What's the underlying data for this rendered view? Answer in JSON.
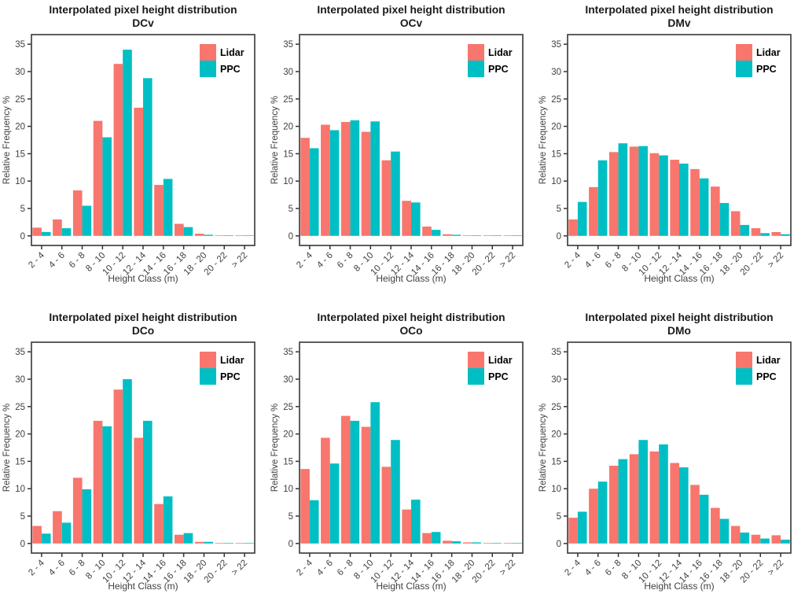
{
  "figure": {
    "background": "#ffffff",
    "layout": "2 rows x 3 columns of grouped bar charts"
  },
  "colors": {
    "lidar": "#F8766D",
    "ppc": "#00BFC4",
    "panel_border": "#4d4d4d",
    "tick_mark": "#333333",
    "axis_text": "#404040",
    "title_text": "#1a1a1a",
    "legend_text": "#000000"
  },
  "chart_data": [
    {
      "type": "bar",
      "title": "Interpolated pixel height distribution",
      "subtitle": "DCv",
      "xlabel": "Height Class (m)",
      "ylabel": "Relative Frequency %",
      "ylim": [
        0,
        35
      ],
      "yticks": [
        0,
        5,
        10,
        15,
        20,
        25,
        30,
        35
      ],
      "grid": false,
      "legend_position": "top-right",
      "categories": [
        "2 - 4",
        "4 - 6",
        "6 - 8",
        "8 - 10",
        "10 - 12",
        "12 - 14",
        "14 - 16",
        "16 - 18",
        "18 - 20",
        "20 - 22",
        "> 22"
      ],
      "series": [
        {
          "name": "Lidar",
          "color": "#F8766D",
          "values": [
            1.5,
            3.0,
            8.3,
            21.0,
            31.4,
            23.4,
            9.3,
            2.2,
            0.4,
            0.1,
            0.1
          ]
        },
        {
          "name": "PPC",
          "color": "#00BFC4",
          "values": [
            0.7,
            1.4,
            5.5,
            18.0,
            34.0,
            28.8,
            10.4,
            1.6,
            0.2,
            0.1,
            0.1
          ]
        }
      ]
    },
    {
      "type": "bar",
      "title": "Interpolated pixel height distribution",
      "subtitle": "OCv",
      "xlabel": "Height Class (m)",
      "ylabel": "Relative Frequency %",
      "ylim": [
        0,
        35
      ],
      "yticks": [
        0,
        5,
        10,
        15,
        20,
        25,
        30,
        35
      ],
      "grid": false,
      "legend_position": "top-right",
      "categories": [
        "2 - 4",
        "4 - 6",
        "6 - 8",
        "8 - 10",
        "10 - 12",
        "12 - 14",
        "14 - 16",
        "16 - 18",
        "18 - 20",
        "20 - 22",
        "> 22"
      ],
      "series": [
        {
          "name": "Lidar",
          "color": "#F8766D",
          "values": [
            17.9,
            20.3,
            20.8,
            19.0,
            13.8,
            6.4,
            1.7,
            0.3,
            0.1,
            0.1,
            0.1
          ]
        },
        {
          "name": "PPC",
          "color": "#00BFC4",
          "values": [
            16.0,
            19.3,
            21.1,
            20.9,
            15.4,
            6.1,
            1.1,
            0.2,
            0.1,
            0.1,
            0.1
          ]
        }
      ]
    },
    {
      "type": "bar",
      "title": "Interpolated pixel height distribution",
      "subtitle": "DMv",
      "xlabel": "Height Class (m)",
      "ylabel": "Relative Frequency %",
      "ylim": [
        0,
        35
      ],
      "yticks": [
        0,
        5,
        10,
        15,
        20,
        25,
        30,
        35
      ],
      "grid": false,
      "legend_position": "top-right",
      "categories": [
        "2 - 4",
        "4 - 6",
        "6 - 8",
        "8 - 10",
        "10 - 12",
        "12 - 14",
        "14 - 16",
        "16 - 18",
        "18 - 20",
        "20 - 22",
        "> 22"
      ],
      "series": [
        {
          "name": "Lidar",
          "color": "#F8766D",
          "values": [
            3.0,
            8.9,
            15.3,
            16.3,
            15.1,
            13.9,
            12.2,
            9.0,
            4.5,
            1.4,
            0.7
          ]
        },
        {
          "name": "PPC",
          "color": "#00BFC4",
          "values": [
            6.2,
            13.8,
            16.9,
            16.4,
            14.7,
            13.2,
            10.5,
            6.0,
            2.0,
            0.5,
            0.3
          ]
        }
      ]
    },
    {
      "type": "bar",
      "title": "Interpolated pixel height distribution",
      "subtitle": "DCo",
      "xlabel": "Height Class (m)",
      "ylabel": "Relative Frequency %",
      "ylim": [
        0,
        35
      ],
      "yticks": [
        0,
        5,
        10,
        15,
        20,
        25,
        30,
        35
      ],
      "grid": false,
      "legend_position": "top-right",
      "categories": [
        "2 - 4",
        "4 - 6",
        "6 - 8",
        "8 - 10",
        "10 - 12",
        "12 - 14",
        "14 - 16",
        "16 - 18",
        "18 - 20",
        "20 - 22",
        "> 22"
      ],
      "series": [
        {
          "name": "Lidar",
          "color": "#F8766D",
          "values": [
            3.2,
            5.9,
            12.0,
            22.4,
            28.1,
            19.3,
            7.2,
            1.6,
            0.3,
            0.1,
            0.1
          ]
        },
        {
          "name": "PPC",
          "color": "#00BFC4",
          "values": [
            1.8,
            3.8,
            9.9,
            21.4,
            30.0,
            22.4,
            8.6,
            1.9,
            0.3,
            0.1,
            0.1
          ]
        }
      ]
    },
    {
      "type": "bar",
      "title": "Interpolated pixel height distribution",
      "subtitle": "OCo",
      "xlabel": "Height Class (m)",
      "ylabel": "Relative Frequency %",
      "ylim": [
        0,
        35
      ],
      "yticks": [
        0,
        5,
        10,
        15,
        20,
        25,
        30,
        35
      ],
      "grid": false,
      "legend_position": "top-right",
      "categories": [
        "2 - 4",
        "4 - 6",
        "6 - 8",
        "8 - 10",
        "10 - 12",
        "12 - 14",
        "14 - 16",
        "16 - 18",
        "18 - 20",
        "20 - 22",
        "> 22"
      ],
      "series": [
        {
          "name": "Lidar",
          "color": "#F8766D",
          "values": [
            13.6,
            19.3,
            23.3,
            21.3,
            14.0,
            6.2,
            1.9,
            0.5,
            0.2,
            0.1,
            0.1
          ]
        },
        {
          "name": "PPC",
          "color": "#00BFC4",
          "values": [
            7.9,
            14.6,
            22.4,
            25.8,
            18.9,
            8.0,
            2.1,
            0.4,
            0.2,
            0.1,
            0.1
          ]
        }
      ]
    },
    {
      "type": "bar",
      "title": "Interpolated pixel height distribution",
      "subtitle": "DMo",
      "xlabel": "Height Class (m)",
      "ylabel": "Relative Frequency %",
      "ylim": [
        0,
        35
      ],
      "yticks": [
        0,
        5,
        10,
        15,
        20,
        25,
        30,
        35
      ],
      "grid": false,
      "legend_position": "top-right",
      "categories": [
        "2 - 4",
        "4 - 6",
        "6 - 8",
        "8 - 10",
        "10 - 12",
        "12 - 14",
        "14 - 16",
        "16 - 18",
        "18 - 20",
        "20 - 22",
        "> 22"
      ],
      "series": [
        {
          "name": "Lidar",
          "color": "#F8766D",
          "values": [
            4.7,
            10.0,
            14.2,
            16.3,
            16.8,
            14.7,
            10.7,
            6.5,
            3.2,
            1.6,
            1.5
          ]
        },
        {
          "name": "PPC",
          "color": "#00BFC4",
          "values": [
            5.8,
            11.3,
            15.4,
            18.9,
            18.1,
            13.9,
            8.9,
            4.5,
            2.0,
            0.9,
            0.7
          ]
        }
      ]
    }
  ]
}
